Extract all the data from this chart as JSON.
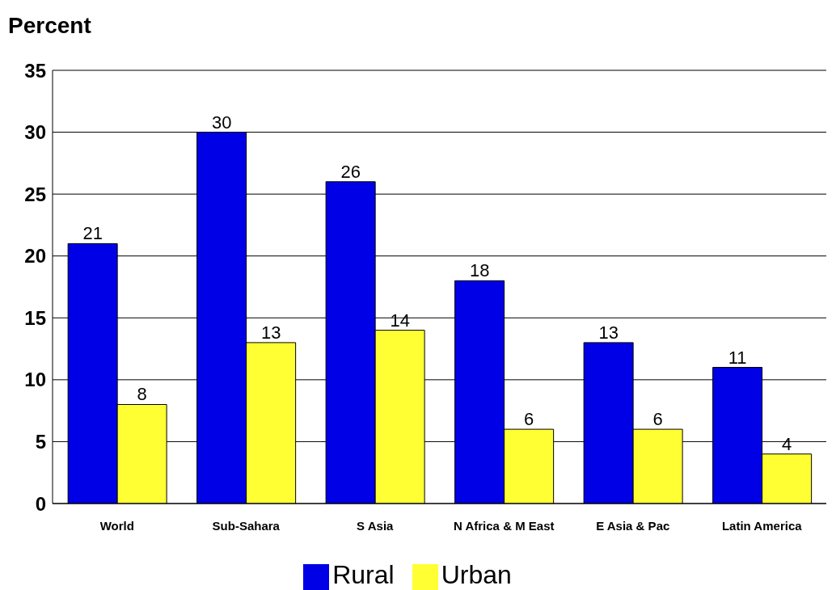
{
  "chart_data": {
    "type": "bar",
    "ylabel": "Percent",
    "categories": [
      "World",
      "Sub-Sahara",
      "S Asia",
      "N Africa & M East",
      "E Asia & Pac",
      "Latin America"
    ],
    "series": [
      {
        "name": "Rural",
        "color": "#0000e6",
        "values": [
          21,
          30,
          26,
          18,
          13,
          11
        ]
      },
      {
        "name": "Urban",
        "color": "#ffff33",
        "values": [
          8,
          13,
          14,
          6,
          6,
          4
        ]
      }
    ],
    "ylim": [
      0,
      35
    ],
    "yticks": [
      0,
      5,
      10,
      15,
      20,
      25,
      30,
      35
    ],
    "grid": "y",
    "legend": "bottom",
    "data_labels": true
  }
}
